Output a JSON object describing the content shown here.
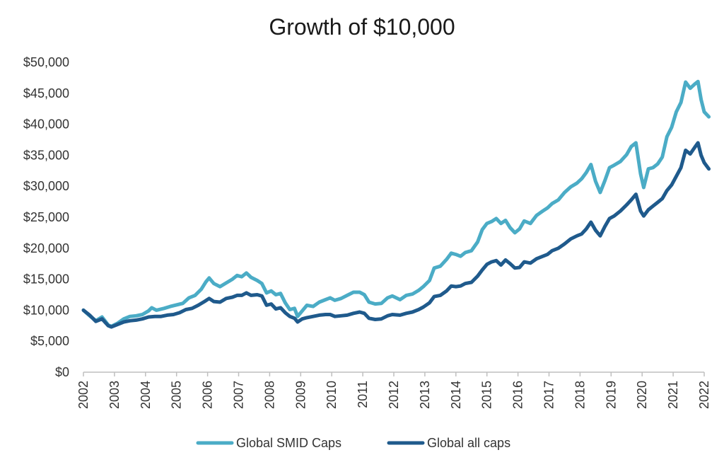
{
  "chart_data": {
    "type": "line",
    "title": "Growth of $10,000",
    "xlabel": "",
    "ylabel": "",
    "ylim": [
      0,
      50000
    ],
    "xlim": [
      2002,
      2022
    ],
    "y_ticks": [
      {
        "value": 0,
        "label": "$0"
      },
      {
        "value": 5000,
        "label": "$5,000"
      },
      {
        "value": 10000,
        "label": "$10,000"
      },
      {
        "value": 15000,
        "label": "$15,000"
      },
      {
        "value": 20000,
        "label": "$20,000"
      },
      {
        "value": 25000,
        "label": "$25,000"
      },
      {
        "value": 30000,
        "label": "$30,000"
      },
      {
        "value": 35000,
        "label": "$35,000"
      },
      {
        "value": 40000,
        "label": "$40,000"
      },
      {
        "value": 45000,
        "label": "$45,000"
      },
      {
        "value": 50000,
        "label": "$50,000"
      }
    ],
    "x_ticks": [
      {
        "value": 2002,
        "label": "2002"
      },
      {
        "value": 2003,
        "label": "2003"
      },
      {
        "value": 2004,
        "label": "2004"
      },
      {
        "value": 2005,
        "label": "2005"
      },
      {
        "value": 2006,
        "label": "2006"
      },
      {
        "value": 2007,
        "label": "2007"
      },
      {
        "value": 2008,
        "label": "2008"
      },
      {
        "value": 2009,
        "label": "2009"
      },
      {
        "value": 2010,
        "label": "2010"
      },
      {
        "value": 2011,
        "label": "2011"
      },
      {
        "value": 2012,
        "label": "2012"
      },
      {
        "value": 2013,
        "label": "2013"
      },
      {
        "value": 2014,
        "label": "2014"
      },
      {
        "value": 2015,
        "label": "2015"
      },
      {
        "value": 2016,
        "label": "2016"
      },
      {
        "value": 2017,
        "label": "2017"
      },
      {
        "value": 2018,
        "label": "2018"
      },
      {
        "value": 2019,
        "label": "2019"
      },
      {
        "value": 2020,
        "label": "2020"
      },
      {
        "value": 2021,
        "label": "2021"
      },
      {
        "value": 2022,
        "label": "2022"
      }
    ],
    "grid": false,
    "legend_position": "bottom-center",
    "series": [
      {
        "name": "Global SMID Caps",
        "color": "#4bacc6",
        "points": [
          [
            2002.0,
            10000
          ],
          [
            2002.2,
            9100
          ],
          [
            2002.4,
            8300
          ],
          [
            2002.6,
            8900
          ],
          [
            2002.8,
            7600
          ],
          [
            2002.9,
            7400
          ],
          [
            2003.1,
            7900
          ],
          [
            2003.3,
            8600
          ],
          [
            2003.5,
            9000
          ],
          [
            2003.7,
            9100
          ],
          [
            2003.9,
            9300
          ],
          [
            2004.1,
            9900
          ],
          [
            2004.2,
            10400
          ],
          [
            2004.35,
            10000
          ],
          [
            2004.6,
            10300
          ],
          [
            2004.8,
            10600
          ],
          [
            2004.95,
            10800
          ],
          [
            2005.2,
            11100
          ],
          [
            2005.4,
            12000
          ],
          [
            2005.6,
            12400
          ],
          [
            2005.8,
            13400
          ],
          [
            2005.95,
            14600
          ],
          [
            2006.05,
            15200
          ],
          [
            2006.2,
            14300
          ],
          [
            2006.4,
            13800
          ],
          [
            2006.6,
            14400
          ],
          [
            2006.8,
            15000
          ],
          [
            2006.95,
            15600
          ],
          [
            2007.1,
            15400
          ],
          [
            2007.25,
            16000
          ],
          [
            2007.4,
            15300
          ],
          [
            2007.6,
            14800
          ],
          [
            2007.75,
            14300
          ],
          [
            2007.9,
            12800
          ],
          [
            2008.05,
            13100
          ],
          [
            2008.2,
            12500
          ],
          [
            2008.35,
            12700
          ],
          [
            2008.5,
            11200
          ],
          [
            2008.65,
            10100
          ],
          [
            2008.8,
            10300
          ],
          [
            2008.9,
            9000
          ],
          [
            2009.05,
            9900
          ],
          [
            2009.2,
            10800
          ],
          [
            2009.4,
            10600
          ],
          [
            2009.6,
            11300
          ],
          [
            2009.8,
            11700
          ],
          [
            2009.95,
            12000
          ],
          [
            2010.1,
            11600
          ],
          [
            2010.3,
            11900
          ],
          [
            2010.5,
            12400
          ],
          [
            2010.7,
            12900
          ],
          [
            2010.9,
            12900
          ],
          [
            2011.05,
            12500
          ],
          [
            2011.2,
            11300
          ],
          [
            2011.4,
            11000
          ],
          [
            2011.6,
            11100
          ],
          [
            2011.8,
            12000
          ],
          [
            2011.95,
            12300
          ],
          [
            2012.2,
            11700
          ],
          [
            2012.4,
            12400
          ],
          [
            2012.6,
            12600
          ],
          [
            2012.8,
            13200
          ],
          [
            2012.95,
            13800
          ],
          [
            2013.15,
            14800
          ],
          [
            2013.3,
            16800
          ],
          [
            2013.5,
            17100
          ],
          [
            2013.7,
            18200
          ],
          [
            2013.85,
            19200
          ],
          [
            2014.0,
            19000
          ],
          [
            2014.15,
            18700
          ],
          [
            2014.3,
            19300
          ],
          [
            2014.5,
            19600
          ],
          [
            2014.7,
            21000
          ],
          [
            2014.85,
            23000
          ],
          [
            2015.0,
            24000
          ],
          [
            2015.15,
            24300
          ],
          [
            2015.3,
            24800
          ],
          [
            2015.45,
            24000
          ],
          [
            2015.6,
            24500
          ],
          [
            2015.75,
            23300
          ],
          [
            2015.9,
            22500
          ],
          [
            2016.05,
            23100
          ],
          [
            2016.2,
            24400
          ],
          [
            2016.4,
            24000
          ],
          [
            2016.6,
            25300
          ],
          [
            2016.8,
            26000
          ],
          [
            2016.95,
            26500
          ],
          [
            2017.1,
            27200
          ],
          [
            2017.3,
            27800
          ],
          [
            2017.5,
            29000
          ],
          [
            2017.7,
            29900
          ],
          [
            2017.9,
            30500
          ],
          [
            2018.05,
            31200
          ],
          [
            2018.2,
            32200
          ],
          [
            2018.35,
            33500
          ],
          [
            2018.5,
            30800
          ],
          [
            2018.65,
            29000
          ],
          [
            2018.8,
            30900
          ],
          [
            2018.95,
            33000
          ],
          [
            2019.1,
            33400
          ],
          [
            2019.3,
            34000
          ],
          [
            2019.5,
            35100
          ],
          [
            2019.65,
            36400
          ],
          [
            2019.8,
            37000
          ],
          [
            2019.95,
            32000
          ],
          [
            2020.05,
            29800
          ],
          [
            2020.2,
            32800
          ],
          [
            2020.35,
            33000
          ],
          [
            2020.5,
            33600
          ],
          [
            2020.65,
            34700
          ],
          [
            2020.8,
            38000
          ],
          [
            2020.95,
            39500
          ],
          [
            2021.1,
            42000
          ],
          [
            2021.25,
            43500
          ],
          [
            2021.4,
            46800
          ],
          [
            2021.55,
            45800
          ],
          [
            2021.7,
            46500
          ],
          [
            2021.8,
            46900
          ],
          [
            2021.9,
            44000
          ],
          [
            2022.0,
            42000
          ],
          [
            2022.15,
            41200
          ]
        ]
      },
      {
        "name": "Global all caps",
        "color": "#1f5a8c",
        "points": [
          [
            2002.0,
            10000
          ],
          [
            2002.2,
            9200
          ],
          [
            2002.4,
            8200
          ],
          [
            2002.6,
            8600
          ],
          [
            2002.8,
            7500
          ],
          [
            2002.9,
            7300
          ],
          [
            2003.1,
            7700
          ],
          [
            2003.3,
            8100
          ],
          [
            2003.5,
            8300
          ],
          [
            2003.7,
            8400
          ],
          [
            2003.9,
            8600
          ],
          [
            2004.1,
            8900
          ],
          [
            2004.3,
            9000
          ],
          [
            2004.5,
            9000
          ],
          [
            2004.7,
            9200
          ],
          [
            2004.9,
            9300
          ],
          [
            2005.1,
            9600
          ],
          [
            2005.3,
            10100
          ],
          [
            2005.5,
            10300
          ],
          [
            2005.7,
            10800
          ],
          [
            2005.9,
            11400
          ],
          [
            2006.05,
            11900
          ],
          [
            2006.2,
            11400
          ],
          [
            2006.4,
            11300
          ],
          [
            2006.6,
            11900
          ],
          [
            2006.8,
            12100
          ],
          [
            2006.95,
            12400
          ],
          [
            2007.1,
            12400
          ],
          [
            2007.25,
            12800
          ],
          [
            2007.4,
            12400
          ],
          [
            2007.6,
            12500
          ],
          [
            2007.75,
            12300
          ],
          [
            2007.9,
            10800
          ],
          [
            2008.05,
            11000
          ],
          [
            2008.2,
            10200
          ],
          [
            2008.35,
            10400
          ],
          [
            2008.5,
            9600
          ],
          [
            2008.65,
            9000
          ],
          [
            2008.8,
            8700
          ],
          [
            2008.9,
            8100
          ],
          [
            2009.05,
            8600
          ],
          [
            2009.2,
            8800
          ],
          [
            2009.4,
            9000
          ],
          [
            2009.6,
            9200
          ],
          [
            2009.8,
            9300
          ],
          [
            2009.95,
            9300
          ],
          [
            2010.1,
            9000
          ],
          [
            2010.3,
            9100
          ],
          [
            2010.5,
            9200
          ],
          [
            2010.7,
            9500
          ],
          [
            2010.9,
            9700
          ],
          [
            2011.05,
            9500
          ],
          [
            2011.2,
            8700
          ],
          [
            2011.4,
            8500
          ],
          [
            2011.6,
            8600
          ],
          [
            2011.8,
            9100
          ],
          [
            2011.95,
            9300
          ],
          [
            2012.2,
            9200
          ],
          [
            2012.4,
            9500
          ],
          [
            2012.6,
            9700
          ],
          [
            2012.8,
            10100
          ],
          [
            2012.95,
            10500
          ],
          [
            2013.15,
            11200
          ],
          [
            2013.3,
            12200
          ],
          [
            2013.5,
            12400
          ],
          [
            2013.7,
            13100
          ],
          [
            2013.85,
            13900
          ],
          [
            2014.0,
            13800
          ],
          [
            2014.15,
            13900
          ],
          [
            2014.3,
            14300
          ],
          [
            2014.5,
            14500
          ],
          [
            2014.7,
            15500
          ],
          [
            2014.85,
            16500
          ],
          [
            2015.0,
            17400
          ],
          [
            2015.15,
            17800
          ],
          [
            2015.3,
            18000
          ],
          [
            2015.45,
            17300
          ],
          [
            2015.6,
            18100
          ],
          [
            2015.75,
            17500
          ],
          [
            2015.9,
            16800
          ],
          [
            2016.05,
            16900
          ],
          [
            2016.2,
            17800
          ],
          [
            2016.4,
            17600
          ],
          [
            2016.6,
            18300
          ],
          [
            2016.8,
            18700
          ],
          [
            2016.95,
            19000
          ],
          [
            2017.1,
            19600
          ],
          [
            2017.3,
            20000
          ],
          [
            2017.5,
            20700
          ],
          [
            2017.7,
            21500
          ],
          [
            2017.9,
            22000
          ],
          [
            2018.05,
            22300
          ],
          [
            2018.2,
            23100
          ],
          [
            2018.35,
            24200
          ],
          [
            2018.5,
            22900
          ],
          [
            2018.65,
            22000
          ],
          [
            2018.8,
            23500
          ],
          [
            2018.95,
            24800
          ],
          [
            2019.1,
            25200
          ],
          [
            2019.3,
            26000
          ],
          [
            2019.5,
            27000
          ],
          [
            2019.65,
            27800
          ],
          [
            2019.8,
            28700
          ],
          [
            2019.95,
            26000
          ],
          [
            2020.05,
            25200
          ],
          [
            2020.2,
            26200
          ],
          [
            2020.35,
            26800
          ],
          [
            2020.5,
            27400
          ],
          [
            2020.65,
            28000
          ],
          [
            2020.8,
            29300
          ],
          [
            2020.95,
            30200
          ],
          [
            2021.1,
            31600
          ],
          [
            2021.25,
            33000
          ],
          [
            2021.4,
            35800
          ],
          [
            2021.55,
            35200
          ],
          [
            2021.7,
            36300
          ],
          [
            2021.8,
            37000
          ],
          [
            2021.9,
            35000
          ],
          [
            2022.0,
            33800
          ],
          [
            2022.15,
            32800
          ]
        ]
      }
    ]
  }
}
